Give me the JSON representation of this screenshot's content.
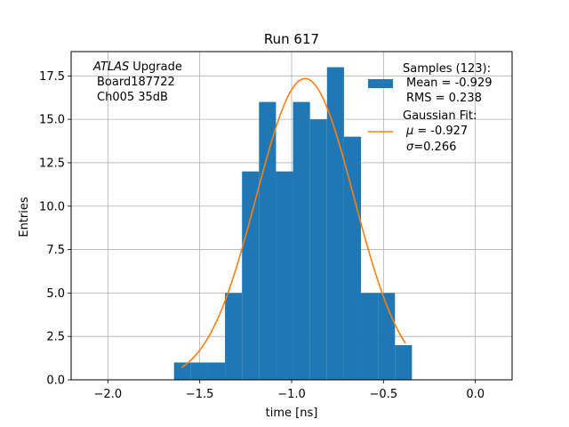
{
  "chart_data": {
    "type": "bar",
    "title": "Run 617",
    "xlabel": "time [ns]",
    "ylabel": "Entries",
    "xlim": [
      -2.2,
      0.2
    ],
    "ylim": [
      0,
      18.9
    ],
    "grid": true,
    "x_ticks": [
      -2.0,
      -1.5,
      -1.0,
      -0.5,
      0.0
    ],
    "x_tick_labels": [
      "−2.0",
      "−1.5",
      "−1.0",
      "−0.5",
      "0.0"
    ],
    "y_ticks": [
      0,
      2.5,
      5,
      7.5,
      10,
      12.5,
      15,
      17.5
    ],
    "y_tick_labels": [
      "0.0",
      "2.5",
      "5.0",
      "7.5",
      "10.0",
      "12.5",
      "15.0",
      "17.5"
    ],
    "histogram": {
      "bin_edges": [
        -1.64,
        -1.5475,
        -1.455,
        -1.3625,
        -1.27,
        -1.1775,
        -1.085,
        -0.9925,
        -0.9,
        -0.8075,
        -0.715,
        -0.6225,
        -0.53,
        -0.4375,
        -0.345
      ],
      "counts": [
        1,
        1,
        1,
        5,
        12,
        16,
        12,
        16,
        15,
        18,
        14,
        5,
        5,
        2
      ],
      "color": "#1f77b4"
    },
    "fit": {
      "x_range": [
        -1.6,
        -0.38
      ],
      "mu": -0.927,
      "sigma": 0.266,
      "amplitude": 17.35,
      "color": "#ff7f0e"
    },
    "annotation_lines": [
      "Upgrade",
      "Board187722",
      "Ch005 35dB"
    ],
    "annotation_italic_word": "ATLAS",
    "legend": {
      "placement": "top-right",
      "entries": [
        {
          "lines": [
            "Samples (123):",
            "Mean = -0.929",
            "RMS = 0.238"
          ]
        },
        {
          "lines": [
            "Gaussian Fit:",
            "-0.927",
            "=0.266"
          ],
          "symbols": [
            "",
            "μ =",
            "σ"
          ]
        }
      ]
    }
  }
}
